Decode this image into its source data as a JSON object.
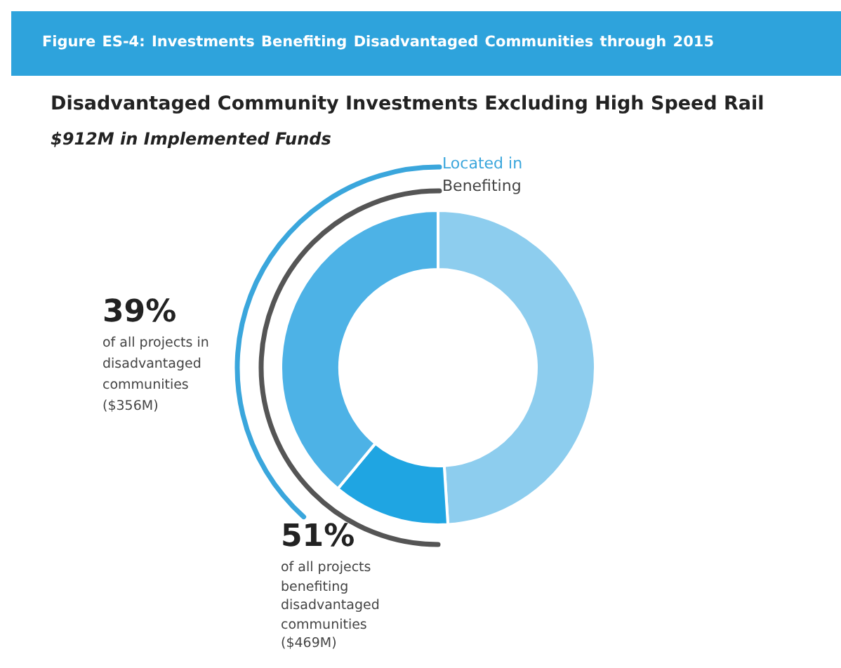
{
  "chart_data": {
    "type": "donut",
    "title": "Figure ES-4:    Investments Benefiting Disadvantaged Communities through 2015",
    "subtitle": "Disadvantaged Community Investments Excluding High Speed Rail",
    "categories": [
      null,
      null,
      null
    ],
    "values": [
      49,
      12,
      39
    ],
    "colors": [
      "#8dcdee",
      "#1fa5e2",
      "#4db2e6"
    ],
    "annotations": [
      "$912M in Implemented Funds",
      "Located in",
      "Benefiting",
      "39%",
      "of all projects in disadvantaged communities ($356M)",
      "51%",
      "of all projects benefiting disadvantaged communities ($469M)"
    ]
  }
}
